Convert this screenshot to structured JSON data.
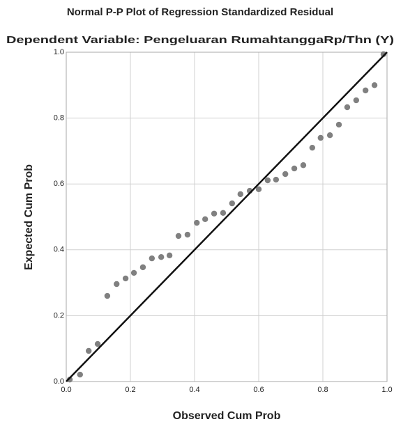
{
  "chart_data": {
    "type": "scatter",
    "title": "Normal P-P Plot of Regression Standardized Residual",
    "subtitle": "Dependent Variable: Pengeluaran RumahtanggaRp/Thn (Y)",
    "x_label": "Observed Cum Prob",
    "y_label": "Expected Cum Prob",
    "color": "#808080",
    "x": [
      0.011,
      0.043,
      0.07,
      0.098,
      0.128,
      0.157,
      0.185,
      0.211,
      0.239,
      0.267,
      0.296,
      0.322,
      0.35,
      0.378,
      0.407,
      0.433,
      0.461,
      0.489,
      0.517,
      0.543,
      0.572,
      0.6,
      0.628,
      0.654,
      0.683,
      0.711,
      0.739,
      0.767,
      0.793,
      0.822,
      0.85,
      0.876,
      0.904,
      0.933,
      0.961,
      0.989
    ],
    "values": [
      0.006,
      0.021,
      0.093,
      0.114,
      0.26,
      0.296,
      0.313,
      0.33,
      0.347,
      0.374,
      0.378,
      0.383,
      0.442,
      0.446,
      0.482,
      0.493,
      0.51,
      0.512,
      0.541,
      0.569,
      0.579,
      0.584,
      0.611,
      0.613,
      0.63,
      0.647,
      0.657,
      0.71,
      0.74,
      0.748,
      0.78,
      0.833,
      0.854,
      0.884,
      0.9,
      0.994
    ],
    "xlim": [
      0,
      1
    ],
    "ylim": [
      0,
      1
    ],
    "xticks": [
      {
        "value": 0,
        "label": "0.0"
      },
      0.2,
      0.4,
      0.6,
      0.8,
      {
        "value": 1,
        "label": "1.0"
      }
    ],
    "yticks": [
      {
        "value": 0,
        "label": "0.0"
      },
      0.2,
      0.4,
      0.6,
      0.8,
      {
        "value": 1,
        "label": "1.0"
      }
    ],
    "grid": true
  }
}
